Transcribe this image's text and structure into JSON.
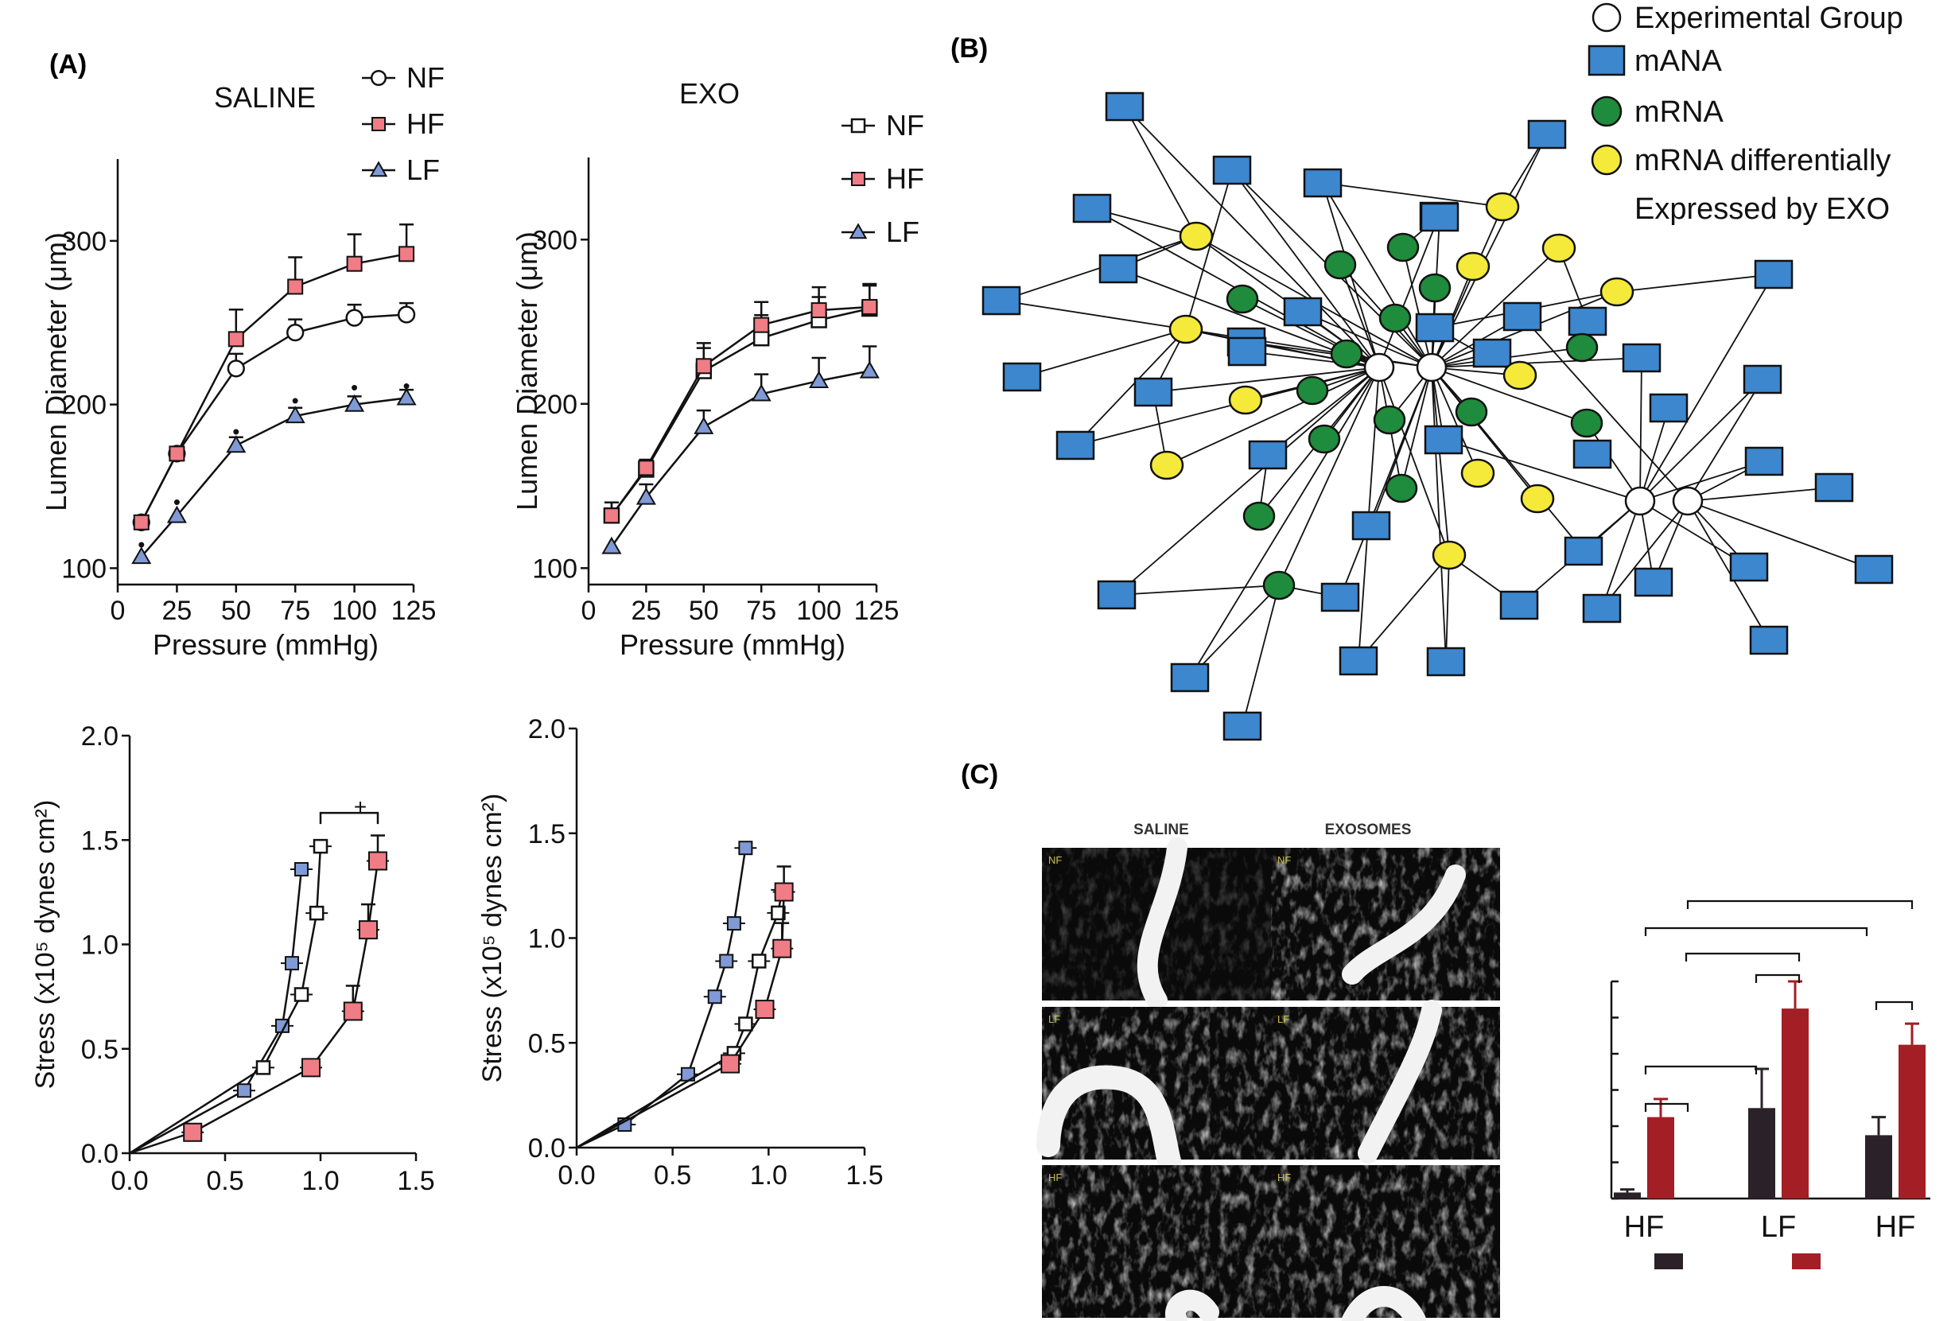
{
  "panel_labels": {
    "a": "(A)",
    "b": "(B)",
    "c": "(C)"
  },
  "colors": {
    "hf": "#f07c85",
    "lf": "#7f9ad6",
    "nf": "#ffffff",
    "mana": "#3d87cf",
    "mrna": "#1f8b3c",
    "mrna_diff": "#f5e93a",
    "dark_bar": "#2a2228",
    "red_bar": "#a31e25"
  },
  "chart_data": [
    {
      "id": "saline-diameter",
      "type": "line",
      "title": "SALINE",
      "xlabel": "Pressure (mmHg)",
      "ylabel": "Lumen Diameter (μm)",
      "xlim": [
        0,
        125
      ],
      "ylim": [
        90,
        350
      ],
      "x_ticks": [
        "0",
        "25",
        "50",
        "75",
        "100",
        "125"
      ],
      "y_ticks": [
        "100",
        "200",
        "300"
      ],
      "x": [
        10,
        25,
        50,
        75,
        100,
        122
      ],
      "series": [
        {
          "name": "NF",
          "marker": "circle",
          "values": [
            128,
            170,
            222,
            244,
            253,
            255
          ],
          "err": [
            0,
            0,
            9,
            8,
            8,
            7
          ]
        },
        {
          "name": "HF",
          "marker": "square",
          "values": [
            128,
            170,
            240,
            272,
            286,
            292
          ],
          "err": [
            0,
            0,
            18,
            18,
            18,
            18
          ]
        },
        {
          "name": "LF",
          "marker": "triangle",
          "values": [
            107,
            132,
            175,
            193,
            200,
            204
          ],
          "err": [
            0,
            0,
            5,
            5,
            5,
            5
          ]
        }
      ],
      "sig_markers": {
        "symbol": "•",
        "x": [
          10,
          25,
          50,
          75,
          100,
          122
        ],
        "y": [
          114,
          140,
          183,
          202,
          210,
          211
        ]
      }
    },
    {
      "id": "exo-diameter",
      "type": "line",
      "title": "EXO",
      "xlabel": "Pressure (mmHg)",
      "ylabel": "Lumen Diameter (μm)",
      "xlim": [
        0,
        125
      ],
      "ylim": [
        90,
        350
      ],
      "x_ticks": [
        "0",
        "25",
        "50",
        "75",
        "100",
        "125"
      ],
      "y_ticks": [
        "100",
        "200",
        "300"
      ],
      "x": [
        10,
        25,
        50,
        75,
        100,
        122
      ],
      "series": [
        {
          "name": "NF",
          "marker": "square-open",
          "values": [
            132,
            160,
            220,
            240,
            251,
            258
          ],
          "err": [
            8,
            5,
            14,
            14,
            14,
            14
          ]
        },
        {
          "name": "HF",
          "marker": "square",
          "values": [
            132,
            161,
            223,
            248,
            257,
            259
          ],
          "err": [
            8,
            5,
            14,
            14,
            14,
            14
          ]
        },
        {
          "name": "LF",
          "marker": "triangle",
          "values": [
            113,
            143,
            186,
            206,
            214,
            220
          ],
          "err": [
            0,
            8,
            10,
            12,
            14,
            15
          ]
        }
      ]
    },
    {
      "id": "saline-stress",
      "type": "line",
      "xlabel": "",
      "ylabel": "Stress (x10⁵ dynes cm²)",
      "xlim": [
        0,
        1.5
      ],
      "ylim": [
        0,
        2.0
      ],
      "x_ticks": [
        "0.0",
        "0.5",
        "1.0",
        "1.5"
      ],
      "y_ticks": [
        "0.0",
        "0.5",
        "1.0",
        "1.5",
        "2.0"
      ],
      "series": [
        {
          "name": "LF",
          "marker": "square",
          "points": [
            [
              0,
              0
            ],
            [
              0.6,
              0.3
            ],
            [
              0.8,
              0.61
            ],
            [
              0.85,
              0.91
            ],
            [
              0.9,
              1.36
            ]
          ]
        },
        {
          "name": "NF",
          "marker": "square-open",
          "points": [
            [
              0,
              0
            ],
            [
              0.7,
              0.41
            ],
            [
              0.9,
              0.76
            ],
            [
              0.98,
              1.15
            ],
            [
              1.0,
              1.47
            ]
          ]
        },
        {
          "name": "HF",
          "marker": "square",
          "points": [
            [
              0.0,
              0.0
            ],
            [
              0.33,
              0.1
            ],
            [
              0.95,
              0.41
            ],
            [
              1.17,
              0.68
            ],
            [
              1.25,
              1.07
            ],
            [
              1.3,
              1.4
            ]
          ]
        }
      ],
      "annotation": "+"
    },
    {
      "id": "exo-stress",
      "type": "line",
      "xlabel": "",
      "ylabel": "Stress (x10⁵ dynes cm²)",
      "xlim": [
        0,
        1.5
      ],
      "ylim": [
        0,
        2.0
      ],
      "x_ticks": [
        "0.0",
        "0.5",
        "1.0",
        "1.5"
      ],
      "y_ticks": [
        "0.0",
        "0.5",
        "1.0",
        "1.5",
        "2.0"
      ],
      "series": [
        {
          "name": "LF",
          "marker": "square",
          "points": [
            [
              0,
              0
            ],
            [
              0.25,
              0.11
            ],
            [
              0.58,
              0.35
            ],
            [
              0.72,
              0.72
            ],
            [
              0.78,
              0.89
            ],
            [
              0.82,
              1.07
            ],
            [
              0.88,
              1.43
            ]
          ]
        },
        {
          "name": "NF",
          "marker": "square-open",
          "points": [
            [
              0,
              0
            ],
            [
              0.82,
              0.45
            ],
            [
              0.88,
              0.59
            ],
            [
              0.95,
              0.89
            ],
            [
              1.05,
              1.12
            ],
            [
              1.07,
              1.23
            ]
          ]
        },
        {
          "name": "HF",
          "marker": "square",
          "points": [
            [
              0,
              0
            ],
            [
              0.8,
              0.4
            ],
            [
              0.98,
              0.66
            ],
            [
              1.07,
              0.95
            ],
            [
              1.08,
              1.22
            ]
          ]
        }
      ]
    },
    {
      "id": "c-bar",
      "type": "bar",
      "categories": [
        "HF",
        "LF",
        "HF"
      ],
      "series": [
        {
          "name": "",
          "values": [
            2,
            30,
            21
          ],
          "err": [
            1,
            13,
            6
          ]
        },
        {
          "name": "",
          "values": [
            27,
            63,
            51
          ],
          "err": [
            6,
            9,
            7
          ]
        }
      ],
      "ylim": [
        0,
        72
      ],
      "brackets": 7
    }
  ],
  "network": {
    "legend": [
      {
        "shape": "circle-open",
        "label": "Experimental Group"
      },
      {
        "shape": "square-blue",
        "label": "mANA"
      },
      {
        "shape": "circle-green",
        "label": "mRNA"
      },
      {
        "shape": "circle-yellow",
        "label": "mRNA differentially"
      },
      {
        "shape": "none",
        "label": "Expressed by EXO"
      }
    ]
  },
  "micro": {
    "col_saline": "SALINE",
    "col_exo": "EXOSOMES",
    "row_tags": [
      "NF",
      "LF",
      "HF"
    ]
  }
}
